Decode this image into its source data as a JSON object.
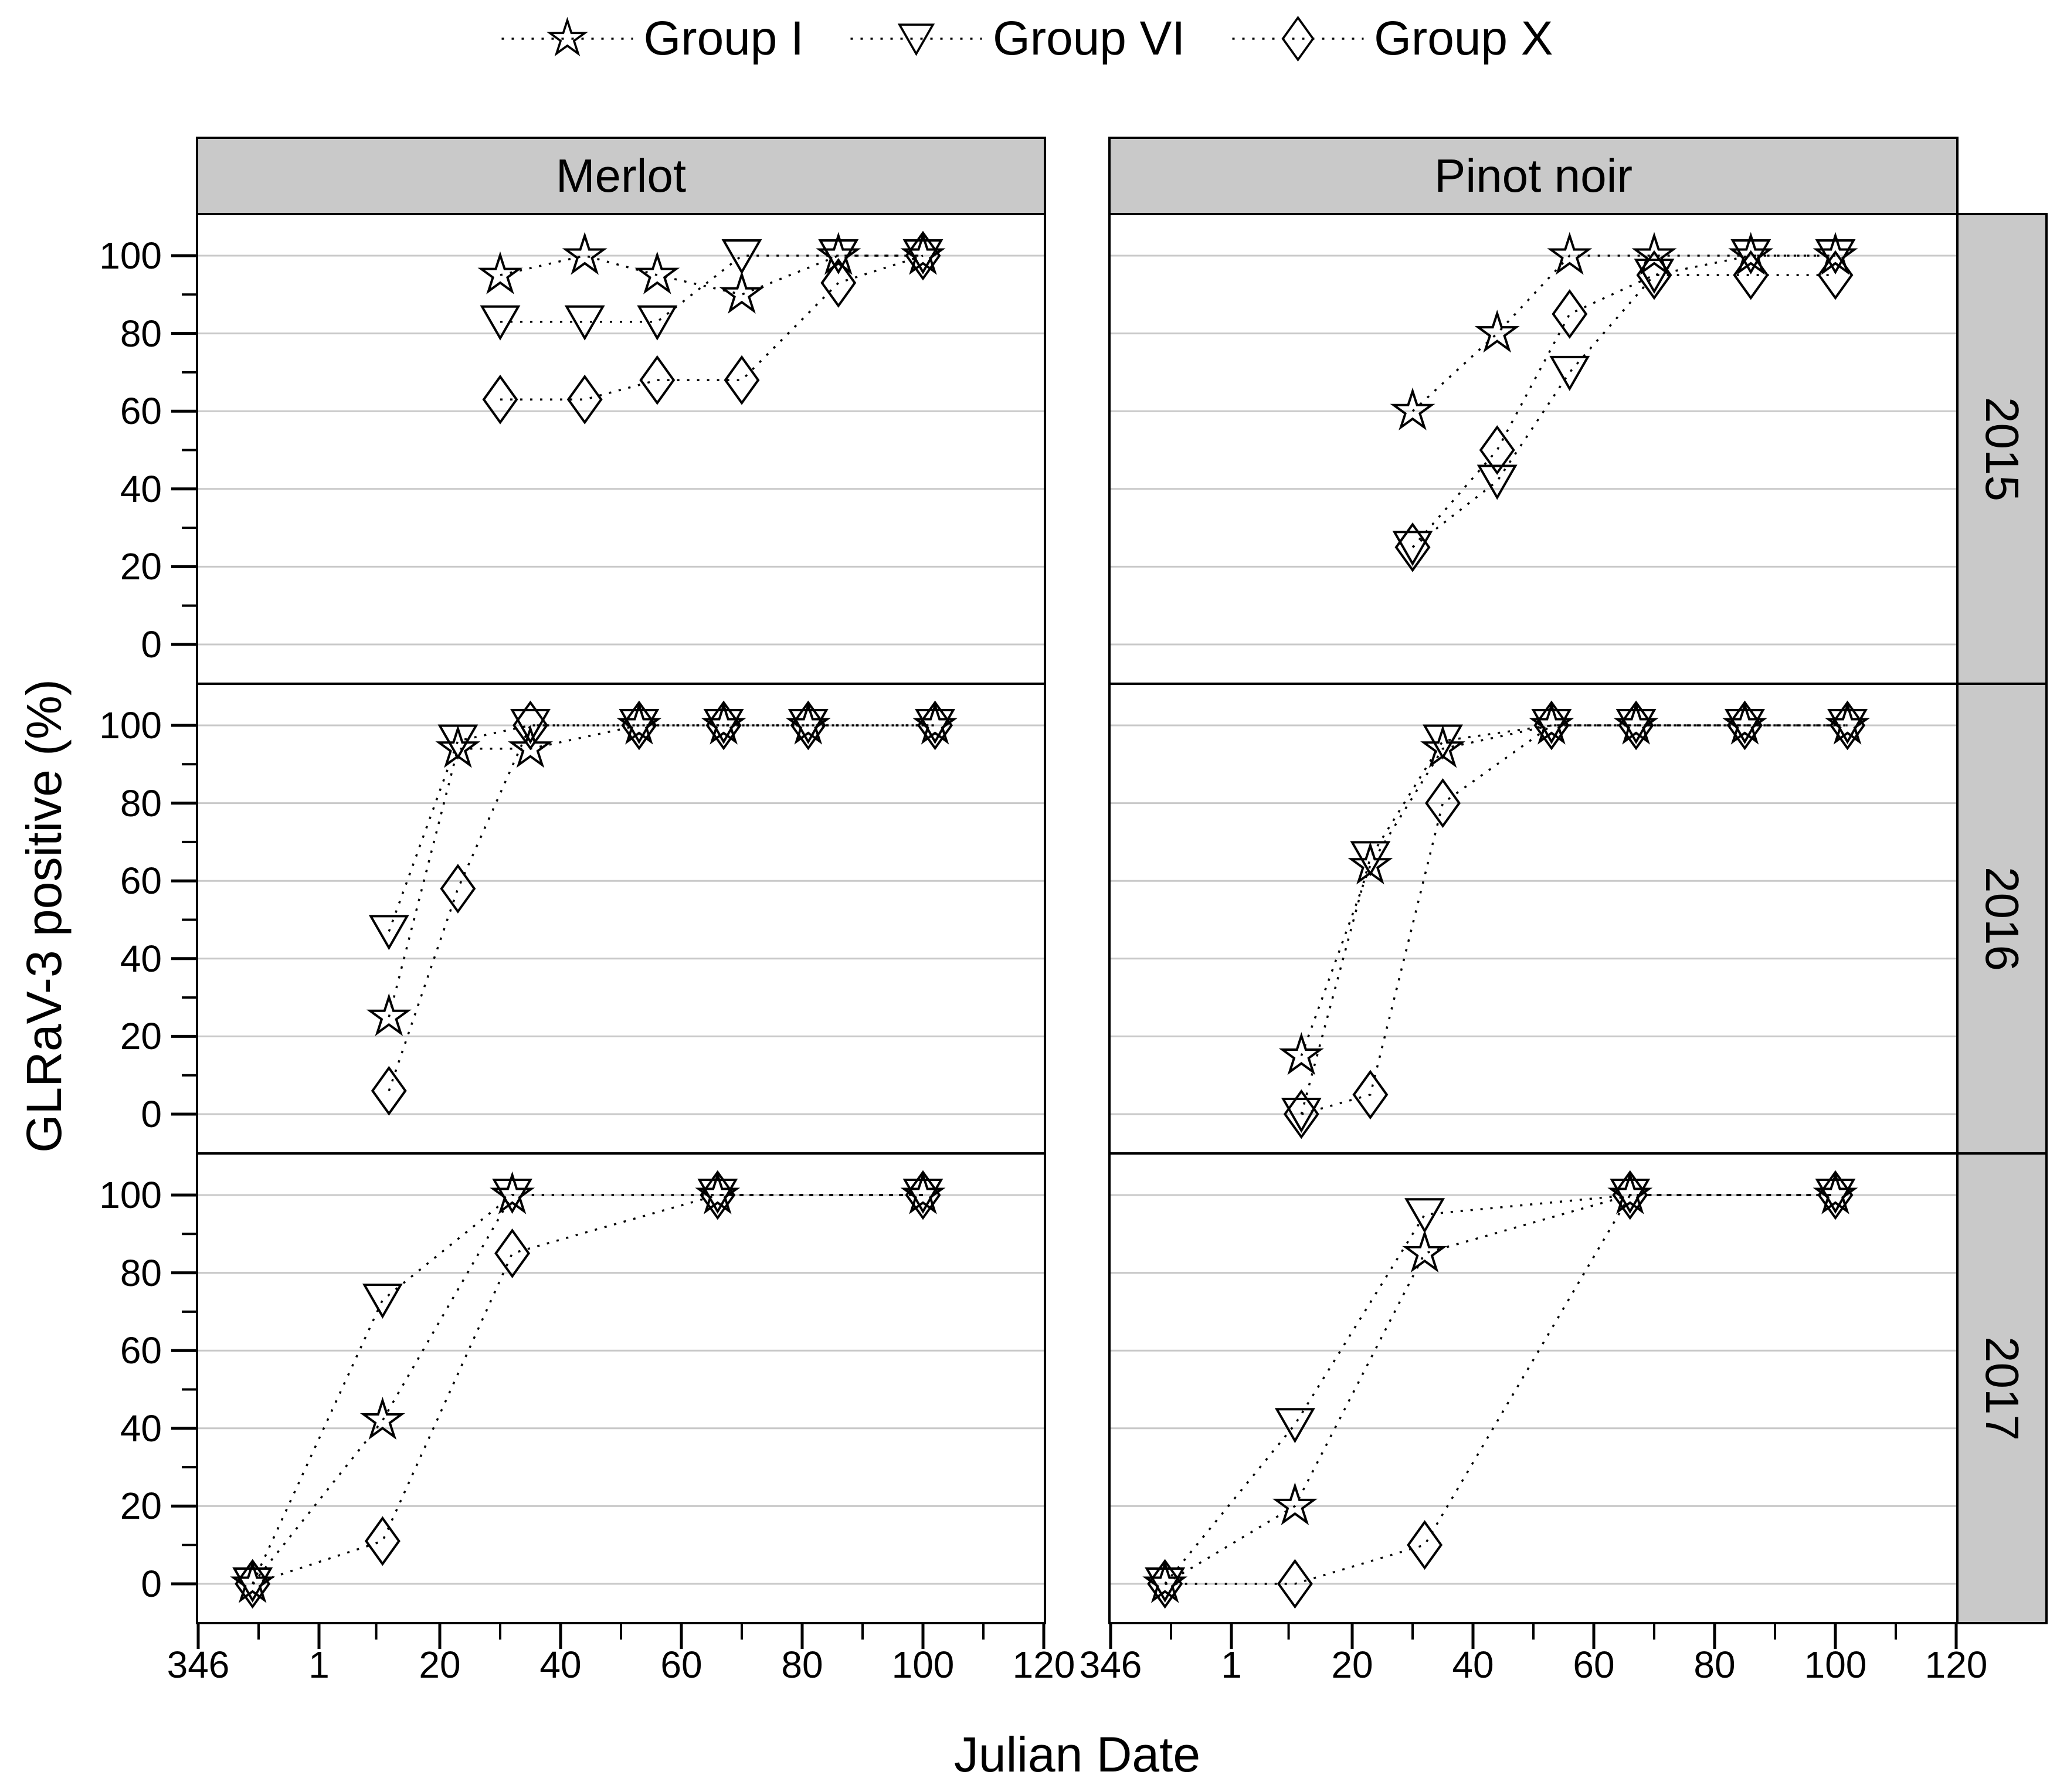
{
  "colors": {
    "background": "#ffffff",
    "header_fill": "#c9c9c9",
    "year_strip_fill": "#c9c9c9",
    "gridline": "#c9c9c9",
    "axis_and_series": "#000000"
  },
  "chart_data": {
    "type": "scatter",
    "title": "",
    "xlabel": "Julian Date",
    "ylabel": "GLRaV-3 positive (%)",
    "column_headers": [
      "Merlot",
      "Pinot noir"
    ],
    "row_headers": [
      "2015",
      "2016",
      "2017"
    ],
    "x_major_ticks": [
      346,
      1,
      20,
      40,
      60,
      80,
      100,
      120
    ],
    "x_minor_ticks": [
      356,
      10,
      30,
      50,
      70,
      90,
      110
    ],
    "y_major_ticks": [
      0,
      20,
      40,
      60,
      80,
      100
    ],
    "y_minor_ticks": [
      10,
      30,
      50,
      70,
      90
    ],
    "ylim": [
      0,
      100
    ],
    "grid": "horizontal-only",
    "line_style": "dotted",
    "legend": {
      "position": "top-center",
      "items": [
        {
          "label": "Group I",
          "marker": "star"
        },
        {
          "label": "Group VI",
          "marker": "triangle-down"
        },
        {
          "label": "Group X",
          "marker": "diamond"
        }
      ]
    },
    "panels": [
      {
        "variety": "Merlot",
        "year": "2015",
        "col": 0,
        "row": 0,
        "x_julian": [
          30,
          44,
          56,
          70,
          86,
          100
        ],
        "series": [
          {
            "group": "Group I",
            "marker": "star",
            "values": [
              95,
              100,
              95,
              90,
              100,
              100
            ]
          },
          {
            "group": "Group VI",
            "marker": "triangle-down",
            "values": [
              83,
              83,
              83,
              100,
              100,
              100
            ]
          },
          {
            "group": "Group X",
            "marker": "diamond",
            "values": [
              63,
              63,
              68,
              68,
              93,
              100
            ]
          }
        ]
      },
      {
        "variety": "Pinot noir",
        "year": "2015",
        "col": 1,
        "row": 0,
        "x_julian": [
          30,
          44,
          56,
          70,
          86,
          100
        ],
        "series": [
          {
            "group": "Group I",
            "marker": "star",
            "values": [
              60,
              80,
              100,
              100,
              100,
              100
            ]
          },
          {
            "group": "Group VI",
            "marker": "triangle-down",
            "values": [
              25,
              42,
              70,
              95,
              100,
              100
            ]
          },
          {
            "group": "Group X",
            "marker": "diamond",
            "values": [
              25,
              50,
              85,
              95,
              95,
              95
            ]
          }
        ]
      },
      {
        "variety": "Merlot",
        "year": "2016",
        "col": 0,
        "row": 1,
        "x_julian": [
          12,
          23,
          35,
          53,
          67,
          81,
          102
        ],
        "series": [
          {
            "group": "Group I",
            "marker": "star",
            "values": [
              25,
              94,
              94,
              100,
              100,
              100,
              100
            ]
          },
          {
            "group": "Group VI",
            "marker": "triangle-down",
            "values": [
              47,
              96,
              100,
              100,
              100,
              100,
              100
            ]
          },
          {
            "group": "Group X",
            "marker": "diamond",
            "values": [
              6,
              58,
              100,
              100,
              100,
              100,
              100
            ]
          }
        ]
      },
      {
        "variety": "Pinot noir",
        "year": "2016",
        "col": 1,
        "row": 1,
        "x_julian": [
          12,
          23,
          35,
          53,
          67,
          85,
          102
        ],
        "series": [
          {
            "group": "Group I",
            "marker": "star",
            "values": [
              15,
              64,
              94,
              100,
              100,
              100,
              100
            ]
          },
          {
            "group": "Group VI",
            "marker": "triangle-down",
            "values": [
              0,
              66,
              96,
              100,
              100,
              100,
              100
            ]
          },
          {
            "group": "Group X",
            "marker": "diamond",
            "values": [
              0,
              5,
              80,
              100,
              100,
              100,
              100
            ]
          }
        ]
      },
      {
        "variety": "Merlot",
        "year": "2017",
        "col": 0,
        "row": 2,
        "x_julian": [
          355,
          11,
          32,
          66,
          100
        ],
        "series": [
          {
            "group": "Group I",
            "marker": "star",
            "values": [
              0,
              42,
              100,
              100,
              100
            ]
          },
          {
            "group": "Group VI",
            "marker": "triangle-down",
            "values": [
              0,
              73,
              100,
              100,
              100
            ]
          },
          {
            "group": "Group X",
            "marker": "diamond",
            "values": [
              0,
              11,
              85,
              100,
              100
            ]
          }
        ]
      },
      {
        "variety": "Pinot noir",
        "year": "2017",
        "col": 1,
        "row": 2,
        "x_julian": [
          355,
          11,
          32,
          66,
          100
        ],
        "series": [
          {
            "group": "Group I",
            "marker": "star",
            "values": [
              0,
              20,
              85,
              100,
              100
            ]
          },
          {
            "group": "Group VI",
            "marker": "triangle-down",
            "values": [
              0,
              41,
              95,
              100,
              100
            ]
          },
          {
            "group": "Group X",
            "marker": "diamond",
            "values": [
              0,
              0,
              10,
              100,
              100
            ]
          }
        ]
      }
    ]
  }
}
